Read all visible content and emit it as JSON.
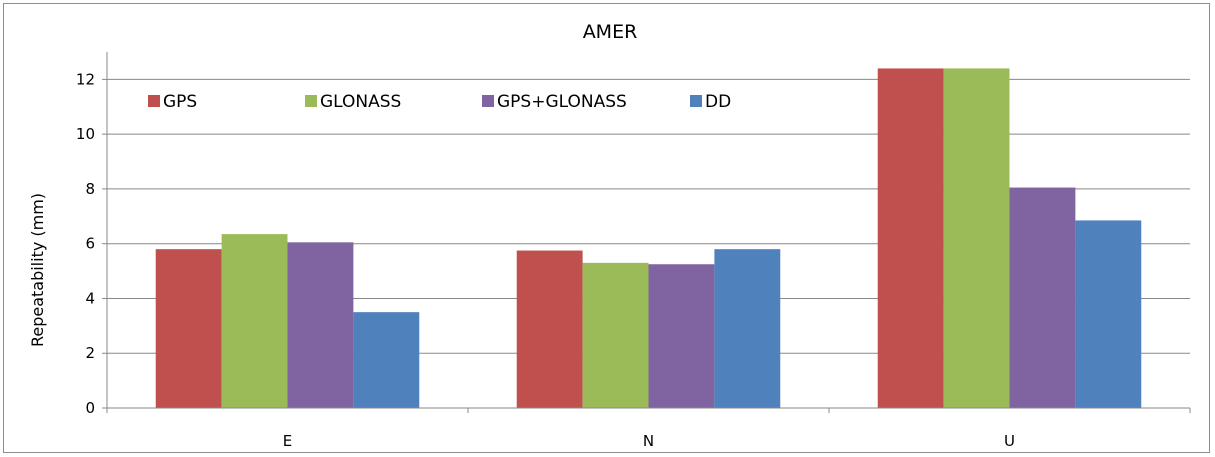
{
  "chart_data": {
    "type": "bar",
    "title": "AMER",
    "xlabel": "",
    "ylabel": "Repeatability (mm)",
    "categories": [
      "E",
      "N",
      "U"
    ],
    "ylim": [
      0,
      13
    ],
    "yticks": [
      0,
      2,
      4,
      6,
      8,
      10,
      12
    ],
    "grid": true,
    "legend_position": "top-left inside",
    "series": [
      {
        "name": "GPS",
        "color": "#c0504d",
        "values": [
          5.8,
          5.75,
          12.4
        ]
      },
      {
        "name": "GLONASS",
        "color": "#9bbb59",
        "values": [
          6.35,
          5.3,
          12.4
        ]
      },
      {
        "name": "GPS+GLONASS",
        "color": "#8064a2",
        "values": [
          6.05,
          5.25,
          8.05
        ]
      },
      {
        "name": "DD",
        "color": "#4f81bd",
        "values": [
          3.5,
          5.8,
          6.85
        ]
      }
    ]
  }
}
